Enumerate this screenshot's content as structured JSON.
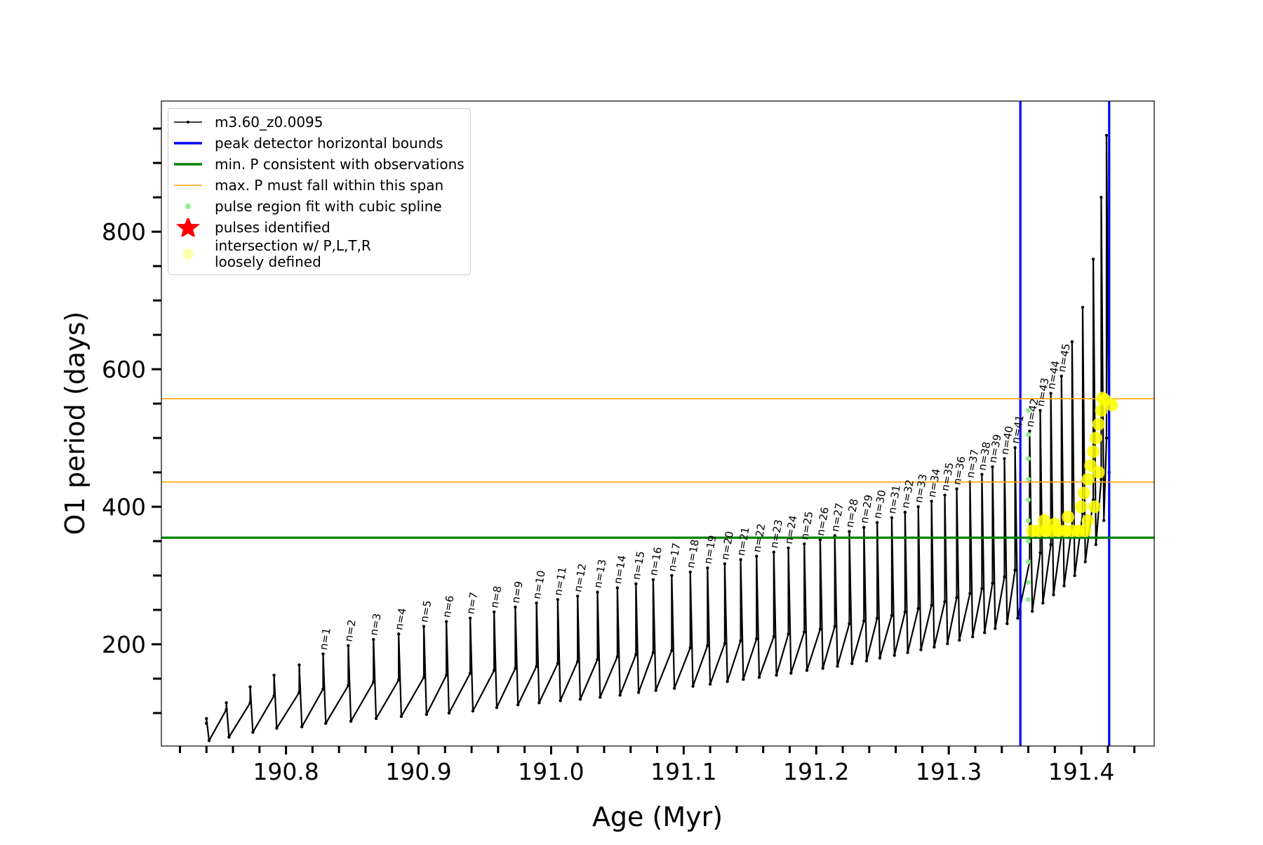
{
  "chart_data": {
    "type": "line",
    "xlabel": "Age (Myr)",
    "ylabel": "O1 period (days)",
    "xlim": [
      190.706,
      191.455
    ],
    "ylim": [
      52,
      990
    ],
    "xticks": [
      190.8,
      190.9,
      {
        "value": 191,
        "label": "191.0"
      },
      191.1,
      191.2,
      191.3,
      191.4
    ],
    "xminorticks": [
      190.72,
      190.74,
      190.76,
      190.78,
      190.82,
      190.84,
      190.86,
      190.88,
      190.92,
      190.94,
      190.96,
      190.98,
      191.02,
      191.04,
      191.06,
      191.08,
      191.12,
      191.14,
      191.16,
      191.18,
      191.22,
      191.24,
      191.26,
      191.28,
      191.32,
      191.34,
      191.36,
      191.38,
      191.42,
      191.44
    ],
    "yticks": [
      200,
      400,
      600,
      800
    ],
    "yminorticks": [
      100,
      150,
      250,
      300,
      350,
      450,
      500,
      550,
      650,
      700,
      750,
      850,
      900,
      950
    ],
    "legend": "upper left",
    "series": [
      {
        "name": "m3.60_z0.0095",
        "type": "line",
        "color": "#000000",
        "x": [
          190.74,
          190.74,
          190.742,
          190.755,
          190.755,
          190.757,
          190.773,
          190.773,
          190.775,
          190.791,
          190.791,
          190.793,
          190.81,
          190.81,
          190.812,
          190.828,
          190.828,
          190.83,
          190.847,
          190.847,
          190.849,
          190.866,
          190.866,
          190.868,
          190.885,
          190.885,
          190.887,
          190.904,
          190.904,
          190.906,
          190.921,
          190.921,
          190.923,
          190.939,
          190.939,
          190.941,
          190.957,
          190.957,
          190.959,
          190.973,
          190.973,
          190.975,
          190.989,
          190.989,
          190.991,
          191.005,
          191.005,
          191.007,
          191.02,
          191.02,
          191.022,
          191.035,
          191.035,
          191.037,
          191.05,
          191.05,
          191.052,
          191.064,
          191.064,
          191.066,
          191.077,
          191.077,
          191.079,
          191.091,
          191.091,
          191.093,
          191.105,
          191.105,
          191.107,
          191.118,
          191.118,
          191.12,
          191.131,
          191.131,
          191.133,
          191.143,
          191.143,
          191.145,
          191.155,
          191.155,
          191.157,
          191.168,
          191.168,
          191.17,
          191.179,
          191.179,
          191.181,
          191.191,
          191.191,
          191.193,
          191.203,
          191.203,
          191.205,
          191.214,
          191.214,
          191.216,
          191.225,
          191.225,
          191.227,
          191.236,
          191.236,
          191.238,
          191.246,
          191.246,
          191.248,
          191.257,
          191.257,
          191.259,
          191.267,
          191.267,
          191.269,
          191.277,
          191.277,
          191.279,
          191.287,
          191.287,
          191.289,
          191.297,
          191.297,
          191.299,
          191.306,
          191.306,
          191.308,
          191.316,
          191.316,
          191.318,
          191.325,
          191.325,
          191.327,
          191.333,
          191.333,
          191.335,
          191.342,
          191.342,
          191.344,
          191.35,
          191.35,
          191.352,
          191.361,
          191.361,
          191.363,
          191.369,
          191.369,
          191.371,
          191.377,
          191.377,
          191.379,
          191.385,
          191.385,
          191.387,
          191.393,
          191.393,
          191.395,
          191.401,
          191.401,
          191.403,
          191.409,
          191.409,
          191.411,
          191.415,
          191.415,
          191.417,
          191.419,
          191.419,
          191.421
        ],
        "values": [
          85,
          92,
          60,
          105,
          115,
          65,
          115,
          138,
          72,
          125,
          155,
          78,
          130,
          170,
          80,
          135,
          186,
          85,
          140,
          198,
          88,
          145,
          207,
          92,
          148,
          215,
          95,
          152,
          226,
          98,
          155,
          233,
          100,
          158,
          238,
          103,
          162,
          247,
          108,
          165,
          254,
          112,
          168,
          260,
          115,
          172,
          265,
          118,
          175,
          270,
          120,
          178,
          276,
          123,
          182,
          282,
          126,
          185,
          288,
          130,
          188,
          294,
          133,
          191,
          300,
          136,
          195,
          305,
          139,
          198,
          311,
          142,
          201,
          317,
          146,
          205,
          323,
          149,
          208,
          328,
          152,
          211,
          334,
          155,
          215,
          340,
          158,
          218,
          346,
          162,
          222,
          352,
          165,
          226,
          358,
          168,
          230,
          364,
          172,
          234,
          370,
          176,
          238,
          377,
          180,
          242,
          384,
          184,
          247,
          392,
          188,
          252,
          400,
          192,
          257,
          408,
          196,
          262,
          417,
          201,
          268,
          426,
          206,
          274,
          436,
          211,
          281,
          447,
          217,
          289,
          458,
          223,
          298,
          470,
          230,
          308,
          486,
          238,
          320,
          510,
          248,
          333,
          540,
          260,
          345,
          565,
          272,
          358,
          590,
          285,
          372,
          640,
          300,
          390,
          690,
          320,
          410,
          760,
          345,
          440,
          850,
          380,
          500,
          940,
          450
        ]
      },
      {
        "name": "peak detector horizontal bounds",
        "type": "vline",
        "color": "#0000ff",
        "x": [
          191.354,
          191.421
        ]
      },
      {
        "name": "min. P consistent with observations",
        "type": "hline",
        "color": "#008000",
        "values": [
          355
        ]
      },
      {
        "name": "max. P must fall within this span",
        "type": "hline",
        "color": "#ffa500",
        "values": [
          436,
          557
        ]
      },
      {
        "name": "pulse region fit with cubic spline",
        "type": "scatter",
        "color": "#90ee90",
        "x": [
          191.36,
          191.36,
          191.36,
          191.36,
          191.36,
          191.36,
          191.36,
          191.36,
          191.36,
          191.36
        ],
        "values": [
          265,
          290,
          320,
          350,
          380,
          410,
          440,
          470,
          505,
          540
        ]
      },
      {
        "name": "pulses identified",
        "type": "scatter",
        "marker": "star",
        "color": "#ff0000",
        "x": [],
        "values": []
      },
      {
        "name": "intersection w/ P,L,T,R\nloosely defined",
        "type": "scatter",
        "color": "#ffff00",
        "x": [
          191.363,
          191.368,
          191.373,
          191.378,
          191.383,
          191.388,
          191.393,
          191.398,
          191.403,
          191.372,
          191.38,
          191.39,
          191.4,
          191.402,
          191.405,
          191.407,
          191.409,
          191.411,
          191.413,
          191.415,
          191.416,
          191.418,
          191.423,
          191.405,
          191.41,
          191.413
        ],
        "values": [
          365,
          365,
          365,
          365,
          365,
          365,
          365,
          365,
          365,
          380,
          375,
          385,
          400,
          420,
          440,
          460,
          480,
          500,
          520,
          540,
          558,
          555,
          548,
          380,
          400,
          450
        ]
      }
    ],
    "annotations": [
      {
        "text": "n=1",
        "x": 190.828,
        "y": 186
      },
      {
        "text": "n=2",
        "x": 190.847,
        "y": 198
      },
      {
        "text": "n=3",
        "x": 190.866,
        "y": 207
      },
      {
        "text": "n=4",
        "x": 190.885,
        "y": 215
      },
      {
        "text": "n=5",
        "x": 190.904,
        "y": 226
      },
      {
        "text": "n=6",
        "x": 190.921,
        "y": 233
      },
      {
        "text": "n=7",
        "x": 190.939,
        "y": 238
      },
      {
        "text": "n=8",
        "x": 190.957,
        "y": 247
      },
      {
        "text": "n=9",
        "x": 190.973,
        "y": 254
      },
      {
        "text": "n=10",
        "x": 190.989,
        "y": 260
      },
      {
        "text": "n=11",
        "x": 191.005,
        "y": 265
      },
      {
        "text": "n=12",
        "x": 191.02,
        "y": 270
      },
      {
        "text": "n=13",
        "x": 191.035,
        "y": 276
      },
      {
        "text": "n=14",
        "x": 191.05,
        "y": 282
      },
      {
        "text": "n=15",
        "x": 191.064,
        "y": 288
      },
      {
        "text": "n=16",
        "x": 191.077,
        "y": 294
      },
      {
        "text": "n=17",
        "x": 191.091,
        "y": 300
      },
      {
        "text": "n=18",
        "x": 191.105,
        "y": 305
      },
      {
        "text": "n=19",
        "x": 191.118,
        "y": 311
      },
      {
        "text": "n=20",
        "x": 191.131,
        "y": 317
      },
      {
        "text": "n=21",
        "x": 191.143,
        "y": 323
      },
      {
        "text": "n=22",
        "x": 191.155,
        "y": 328
      },
      {
        "text": "n=23",
        "x": 191.168,
        "y": 334
      },
      {
        "text": "n=24",
        "x": 191.179,
        "y": 340
      },
      {
        "text": "n=25",
        "x": 191.191,
        "y": 346
      },
      {
        "text": "n=26",
        "x": 191.203,
        "y": 352
      },
      {
        "text": "n=27",
        "x": 191.214,
        "y": 358
      },
      {
        "text": "n=28",
        "x": 191.225,
        "y": 364
      },
      {
        "text": "n=29",
        "x": 191.236,
        "y": 370
      },
      {
        "text": "n=30",
        "x": 191.246,
        "y": 377
      },
      {
        "text": "n=31",
        "x": 191.257,
        "y": 384
      },
      {
        "text": "n=32",
        "x": 191.267,
        "y": 392
      },
      {
        "text": "n=33",
        "x": 191.277,
        "y": 400
      },
      {
        "text": "n=34",
        "x": 191.287,
        "y": 408
      },
      {
        "text": "n=35",
        "x": 191.297,
        "y": 417
      },
      {
        "text": "n=36",
        "x": 191.306,
        "y": 426
      },
      {
        "text": "n=37",
        "x": 191.316,
        "y": 436
      },
      {
        "text": "n=38",
        "x": 191.325,
        "y": 447
      },
      {
        "text": "n=39",
        "x": 191.333,
        "y": 458
      },
      {
        "text": "n=40",
        "x": 191.342,
        "y": 470
      },
      {
        "text": "n=41",
        "x": 191.35,
        "y": 486
      },
      {
        "text": "n=42",
        "x": 191.361,
        "y": 510
      },
      {
        "text": "n=43",
        "x": 191.369,
        "y": 540
      },
      {
        "text": "n=44",
        "x": 191.377,
        "y": 565
      },
      {
        "text": "n=45",
        "x": 191.385,
        "y": 590
      }
    ]
  }
}
